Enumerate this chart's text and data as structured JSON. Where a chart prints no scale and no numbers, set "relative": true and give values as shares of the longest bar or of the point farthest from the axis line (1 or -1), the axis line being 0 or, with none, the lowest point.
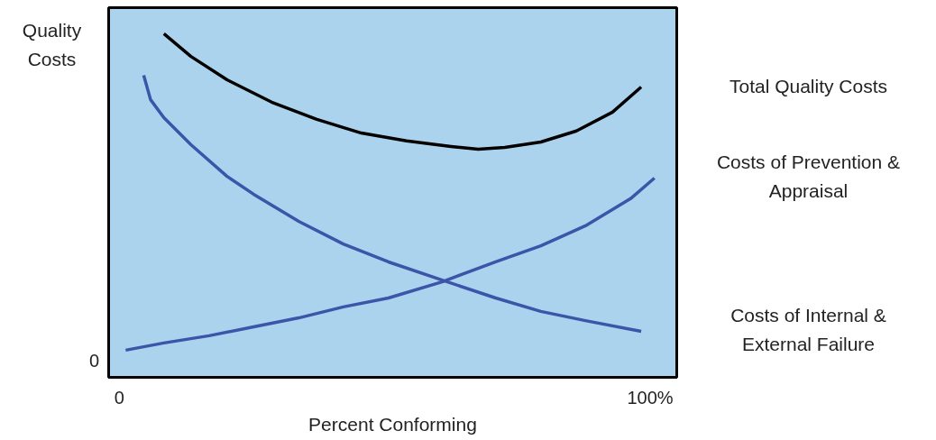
{
  "chart_data": {
    "type": "line",
    "relative": true,
    "ylabel": "Quality Costs",
    "xlabel": "Percent Conforming",
    "xlim": [
      -2,
      105
    ],
    "xticks": [
      0,
      {
        "value": 100,
        "label": "100%"
      }
    ],
    "grid": false,
    "legend": false,
    "marker": "none",
    "line_style": "solid",
    "annotations": [
      "0"
    ],
    "series": [
      {
        "name": "Total Quality Costs",
        "color": "#000000",
        "x": [
          8.4,
          13.5,
          20.3,
          28.7,
          37.2,
          45.6,
          54.1,
          62.5,
          67.6,
          72.6,
          79.4,
          86.1,
          92.9,
          98.3
        ],
        "values": [
          1.0,
          0.934,
          0.866,
          0.801,
          0.751,
          0.711,
          0.688,
          0.672,
          0.664,
          0.669,
          0.685,
          0.717,
          0.772,
          0.845
        ]
      },
      {
        "name": "Costs of Prevention & Appraisal",
        "color": "#3b55a8",
        "x": [
          1.2,
          8.4,
          16.9,
          25.3,
          33.8,
          42.2,
          50.7,
          60.8,
          70.9,
          79.4,
          87.8,
          96.3,
          100.8
        ],
        "values": [
          0.079,
          0.1,
          0.121,
          0.147,
          0.173,
          0.205,
          0.231,
          0.278,
          0.336,
          0.383,
          0.441,
          0.52,
          0.58
        ]
      },
      {
        "name": "Costs of Internal & External Failure",
        "color": "#3b55a8",
        "x": [
          4.6,
          5.9,
          8.4,
          13.5,
          20.3,
          25.3,
          33.8,
          42.2,
          50.7,
          60.8,
          70.9,
          79.4,
          87.8,
          98.3
        ],
        "values": [
          0.879,
          0.808,
          0.756,
          0.677,
          0.585,
          0.533,
          0.454,
          0.388,
          0.336,
          0.283,
          0.231,
          0.192,
          0.165,
          0.134
        ]
      }
    ]
  }
}
